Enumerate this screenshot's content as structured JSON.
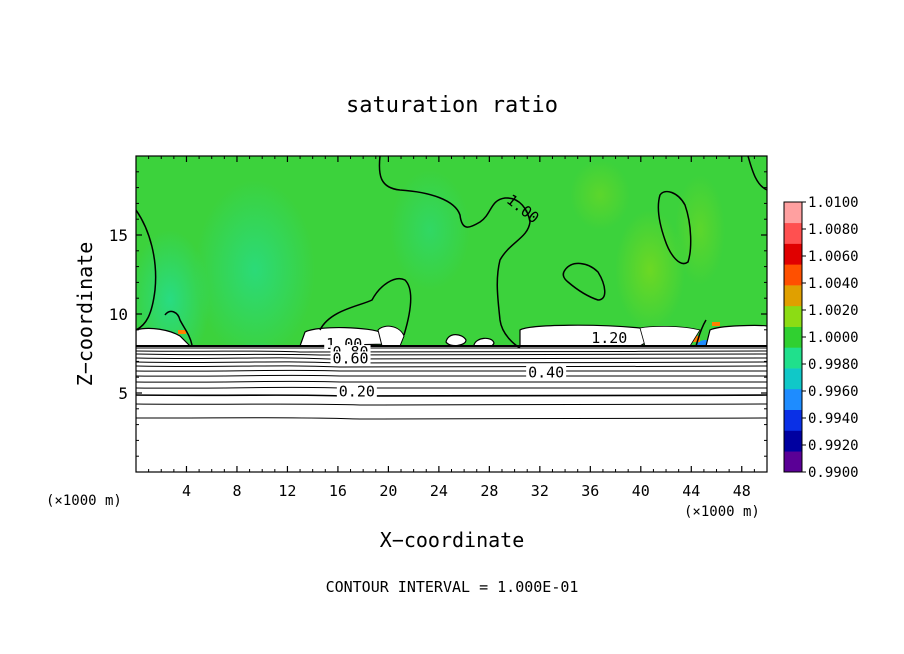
{
  "chart_data": {
    "type": "heatmap",
    "title": "saturation ratio",
    "xlabel": "X−coordinate",
    "ylabel": "Z−coordinate",
    "x_unit_left": "(×1000 m)",
    "x_unit_right": "(×1000 m)",
    "xlim": [
      0,
      50
    ],
    "ylim": [
      0,
      20
    ],
    "x_ticks": [
      4,
      8,
      12,
      16,
      20,
      24,
      28,
      32,
      36,
      40,
      44,
      48
    ],
    "y_ticks": [
      5,
      10,
      15
    ],
    "footnote": "CONTOUR INTERVAL = 1.000E-01",
    "colorbar": {
      "min": 0.99,
      "max": 1.01,
      "labels": [
        "1.0100",
        "1.0080",
        "1.0060",
        "1.0040",
        "1.0020",
        "1.0000",
        "0.9980",
        "0.9960",
        "0.9940",
        "0.9920",
        "0.9900"
      ],
      "colors": [
        "#5a0096",
        "#0000a0",
        "#0a30e6",
        "#1e8cff",
        "#10c8c8",
        "#20e08c",
        "#30d030",
        "#8cdc14",
        "#e0a000",
        "#ff5000",
        "#e00000",
        "#ff5050",
        "#ffa0a0"
      ]
    },
    "field": {
      "background_color": "#3cd23c",
      "ice_layer_top_z": 8.0,
      "dry_layer_color": "#ffffff"
    },
    "contour_labels": [
      {
        "text": "1.00",
        "x": 30.5,
        "z": 16.5
      },
      {
        "text": "1.20",
        "x": 37.5,
        "z": 8.3
      },
      {
        "text": "1.00",
        "x": 16.5,
        "z": 7.9
      },
      {
        "text": "0.80",
        "x": 17.0,
        "z": 7.4
      },
      {
        "text": "0.60",
        "x": 17.0,
        "z": 7.0
      },
      {
        "text": "0.40",
        "x": 32.5,
        "z": 6.1
      },
      {
        "text": "0.20",
        "x": 17.5,
        "z": 4.9
      }
    ]
  }
}
